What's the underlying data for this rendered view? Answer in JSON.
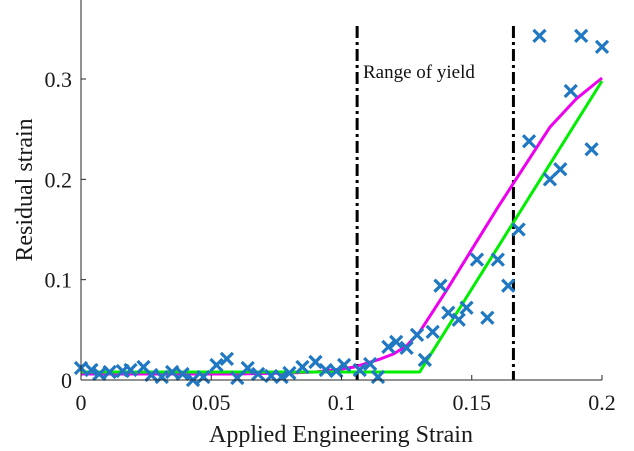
{
  "chart_data": {
    "type": "scatter",
    "xlabel": "Applied Engineering Strain",
    "ylabel": "Residual strain",
    "xlim": [
      0,
      0.2
    ],
    "ylim": [
      0,
      0.36
    ],
    "xticks": [
      0,
      0.05,
      0.1,
      0.15,
      0.2
    ],
    "xtick_labels": [
      "0",
      "0.05",
      "0.1",
      "0.15",
      "0.2"
    ],
    "yticks": [
      0,
      0.1,
      0.2,
      0.3
    ],
    "ytick_labels": [
      "0",
      "0.1",
      "0.2",
      "0.3"
    ],
    "grid": false,
    "legend": "none",
    "annotations": [
      {
        "text": "Range of yield"
      }
    ],
    "vertical_lines": [
      {
        "x": 0.106,
        "style": "dash-dot",
        "color": "#000000"
      },
      {
        "x": 0.166,
        "style": "dash-dot",
        "color": "#000000"
      }
    ],
    "series": [
      {
        "kind": "scatter",
        "marker": "x",
        "color": "#1f78c1",
        "points": [
          [
            0.0,
            0.012
          ],
          [
            0.004,
            0.01
          ],
          [
            0.007,
            0.006
          ],
          [
            0.011,
            0.008
          ],
          [
            0.016,
            0.009
          ],
          [
            0.019,
            0.01
          ],
          [
            0.024,
            0.013
          ],
          [
            0.027,
            0.005
          ],
          [
            0.031,
            0.003
          ],
          [
            0.035,
            0.008
          ],
          [
            0.039,
            0.006
          ],
          [
            0.043,
            0.0
          ],
          [
            0.047,
            0.003
          ],
          [
            0.052,
            0.015
          ],
          [
            0.056,
            0.021
          ],
          [
            0.06,
            0.002
          ],
          [
            0.064,
            0.012
          ],
          [
            0.068,
            0.006
          ],
          [
            0.073,
            0.004
          ],
          [
            0.077,
            0.003
          ],
          [
            0.08,
            0.007
          ],
          [
            0.085,
            0.013
          ],
          [
            0.09,
            0.018
          ],
          [
            0.094,
            0.01
          ],
          [
            0.098,
            0.009
          ],
          [
            0.101,
            0.015
          ],
          [
            0.107,
            0.01
          ],
          [
            0.111,
            0.016
          ],
          [
            0.114,
            0.003
          ],
          [
            0.118,
            0.033
          ],
          [
            0.121,
            0.038
          ],
          [
            0.125,
            0.032
          ],
          [
            0.129,
            0.045
          ],
          [
            0.132,
            0.02
          ],
          [
            0.135,
            0.048
          ],
          [
            0.138,
            0.094
          ],
          [
            0.141,
            0.067
          ],
          [
            0.145,
            0.06
          ],
          [
            0.148,
            0.072
          ],
          [
            0.152,
            0.12
          ],
          [
            0.156,
            0.062
          ],
          [
            0.16,
            0.12
          ],
          [
            0.164,
            0.094
          ],
          [
            0.168,
            0.15
          ],
          [
            0.172,
            0.238
          ],
          [
            0.176,
            0.343
          ],
          [
            0.18,
            0.2
          ],
          [
            0.184,
            0.21
          ],
          [
            0.188,
            0.288
          ],
          [
            0.192,
            0.343
          ],
          [
            0.196,
            0.23
          ],
          [
            0.2,
            0.332
          ]
        ]
      },
      {
        "kind": "line",
        "color": "#ee00ee",
        "points": [
          [
            0.0,
            0.006
          ],
          [
            0.02,
            0.006
          ],
          [
            0.04,
            0.006
          ],
          [
            0.06,
            0.006
          ],
          [
            0.08,
            0.007
          ],
          [
            0.09,
            0.008
          ],
          [
            0.1,
            0.011
          ],
          [
            0.105,
            0.013
          ],
          [
            0.11,
            0.017
          ],
          [
            0.115,
            0.021
          ],
          [
            0.12,
            0.026
          ],
          [
            0.125,
            0.034
          ],
          [
            0.13,
            0.048
          ],
          [
            0.135,
            0.068
          ],
          [
            0.14,
            0.088
          ],
          [
            0.15,
            0.13
          ],
          [
            0.16,
            0.172
          ],
          [
            0.17,
            0.212
          ],
          [
            0.18,
            0.252
          ],
          [
            0.19,
            0.28
          ],
          [
            0.2,
            0.301
          ]
        ]
      },
      {
        "kind": "line",
        "color": "#00ee00",
        "points": [
          [
            0.0,
            0.008
          ],
          [
            0.13,
            0.008
          ],
          [
            0.2,
            0.298
          ]
        ]
      }
    ]
  }
}
